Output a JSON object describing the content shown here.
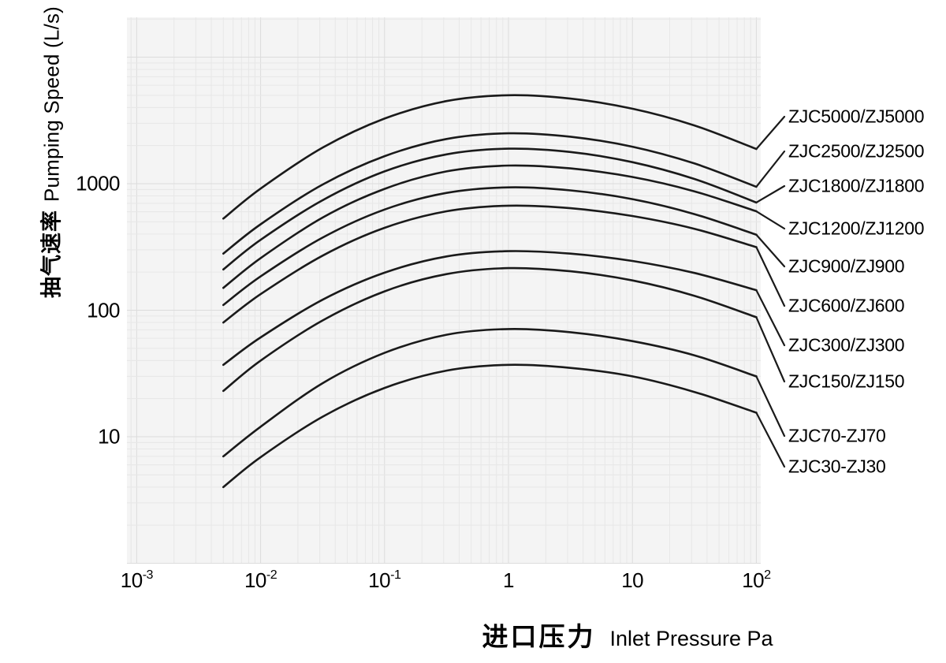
{
  "colors": {
    "page_bg": "#ffffff",
    "plot_bg": "#f4f4f4",
    "grid_minor": "#e7e7e7",
    "grid_major": "#dcdcdc",
    "curve": "#1a1a1a",
    "text": "#000000"
  },
  "chart_data": {
    "type": "line",
    "title": "",
    "xlabel_zh": "进口压力",
    "xlabel_en": "Inlet Pressure Pa",
    "ylabel_zh": "抽气速率",
    "ylabel_en": "Pumping Speed (L/s)",
    "xscale": "log",
    "yscale": "log",
    "xlim": [
      0.001,
      100
    ],
    "ylim": [
      1,
      20000
    ],
    "grid": true,
    "legend_position": "right-of-plot-leader-lines",
    "x_ticks": [
      {
        "value": 0.001,
        "base": "10",
        "sup": "-3"
      },
      {
        "value": 0.01,
        "base": "10",
        "sup": "-2"
      },
      {
        "value": 0.1,
        "base": "10",
        "sup": "-1"
      },
      {
        "value": 1,
        "base": "1",
        "sup": ""
      },
      {
        "value": 10,
        "base": "10",
        "sup": ""
      },
      {
        "value": 100,
        "base": "10",
        "sup": "2"
      }
    ],
    "y_ticks": [
      {
        "value": 10,
        "label": "10"
      },
      {
        "value": 100,
        "label": "100"
      },
      {
        "value": 1000,
        "label": "1000"
      }
    ],
    "x": [
      0.005,
      0.01,
      0.0316,
      0.1,
      0.316,
      1,
      3.16,
      10,
      31.6,
      100
    ],
    "series": [
      {
        "name": "ZJC5000/ZJ5000",
        "values": [
          530,
          915,
          1925,
          3270,
          4495,
          5000,
          4705,
          3915,
          2885,
          1880
        ]
      },
      {
        "name": "ZJC2500/ZJ2500",
        "values": [
          280,
          478,
          985,
          1650,
          2255,
          2500,
          2350,
          1960,
          1445,
          945
        ]
      },
      {
        "name": "ZJC1800/ZJ1800",
        "values": [
          210,
          360,
          740,
          1250,
          1705,
          1890,
          1780,
          1480,
          1090,
          710
        ]
      },
      {
        "name": "ZJC1200/ZJ1200",
        "values": [
          150,
          258,
          540,
          910,
          1250,
          1390,
          1320,
          1130,
          870,
          605
        ]
      },
      {
        "name": "ZJC900/ZJ900",
        "values": [
          110,
          185,
          375,
          625,
          845,
          935,
          885,
          755,
          575,
          395
        ]
      },
      {
        "name": "ZJC600/ZJ600",
        "values": [
          80,
          134,
          270,
          448,
          605,
          670,
          640,
          555,
          440,
          315
        ]
      },
      {
        "name": "ZJC300/ZJ300",
        "values": [
          37,
          61,
          121,
          198,
          266,
          293,
          280,
          245,
          197,
          144
        ]
      },
      {
        "name": "ZJC150/ZJ150",
        "values": [
          23,
          40,
          83,
          141,
          193,
          215,
          203,
          172,
          130,
          88
        ]
      },
      {
        "name": "ZJC70-ZJ70",
        "values": [
          7,
          12,
          26.5,
          46,
          64,
          71,
          67,
          57,
          44,
          30
        ]
      },
      {
        "name": "ZJC30-ZJ30",
        "values": [
          4,
          6.9,
          14.4,
          24.3,
          33.3,
          37,
          35,
          30,
          22.6,
          15.5
        ]
      }
    ]
  }
}
